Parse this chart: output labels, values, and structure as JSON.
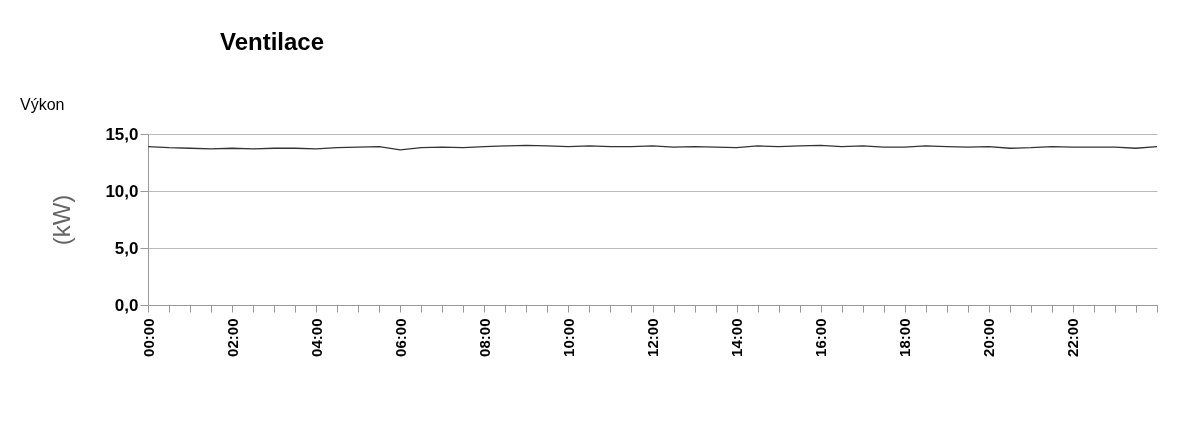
{
  "chart_data": {
    "type": "line",
    "title": "Ventilace",
    "ylabel": "(kW)",
    "annotations": [
      "Výkon"
    ],
    "x": [
      0,
      0.5,
      1,
      1.5,
      2,
      2.5,
      3,
      3.5,
      4,
      4.5,
      5,
      5.5,
      6,
      6.5,
      7,
      7.5,
      8,
      8.5,
      9,
      9.5,
      10,
      10.5,
      11,
      11.5,
      12,
      12.5,
      13,
      13.5,
      14,
      14.5,
      15,
      15.5,
      16,
      16.5,
      17,
      17.5,
      18,
      18.5,
      19,
      19.5,
      20,
      20.5,
      21,
      21.5,
      22,
      22.5,
      23,
      23.5,
      24
    ],
    "series": [
      {
        "color": "#333333",
        "values": [
          13.9,
          13.8,
          13.75,
          13.7,
          13.75,
          13.7,
          13.75,
          13.75,
          13.7,
          13.8,
          13.85,
          13.9,
          13.6,
          13.8,
          13.85,
          13.8,
          13.9,
          13.95,
          14.0,
          13.95,
          13.9,
          13.95,
          13.9,
          13.9,
          13.95,
          13.85,
          13.9,
          13.85,
          13.8,
          13.95,
          13.9,
          13.95,
          14.0,
          13.9,
          13.95,
          13.85,
          13.85,
          13.95,
          13.9,
          13.85,
          13.9,
          13.75,
          13.8,
          13.9,
          13.85,
          13.85,
          13.85,
          13.75,
          13.9
        ]
      }
    ],
    "xlim": [
      0,
      24
    ],
    "xticks": [
      {
        "value": 0,
        "label": "00:00"
      },
      {
        "value": 0.5,
        "label": null
      },
      {
        "value": 1,
        "label": null
      },
      {
        "value": 1.5,
        "label": null
      },
      {
        "value": 2,
        "label": "02:00"
      },
      {
        "value": 2.5,
        "label": null
      },
      {
        "value": 3,
        "label": null
      },
      {
        "value": 3.5,
        "label": null
      },
      {
        "value": 4,
        "label": "04:00"
      },
      {
        "value": 4.5,
        "label": null
      },
      {
        "value": 5,
        "label": null
      },
      {
        "value": 5.5,
        "label": null
      },
      {
        "value": 6,
        "label": "06:00"
      },
      {
        "value": 6.5,
        "label": null
      },
      {
        "value": 7,
        "label": null
      },
      {
        "value": 7.5,
        "label": null
      },
      {
        "value": 8,
        "label": "08:00"
      },
      {
        "value": 8.5,
        "label": null
      },
      {
        "value": 9,
        "label": null
      },
      {
        "value": 9.5,
        "label": null
      },
      {
        "value": 10,
        "label": "10:00"
      },
      {
        "value": 10.5,
        "label": null
      },
      {
        "value": 11,
        "label": null
      },
      {
        "value": 11.5,
        "label": null
      },
      {
        "value": 12,
        "label": "12:00"
      },
      {
        "value": 12.5,
        "label": null
      },
      {
        "value": 13,
        "label": null
      },
      {
        "value": 13.5,
        "label": null
      },
      {
        "value": 14,
        "label": "14:00"
      },
      {
        "value": 14.5,
        "label": null
      },
      {
        "value": 15,
        "label": null
      },
      {
        "value": 15.5,
        "label": null
      },
      {
        "value": 16,
        "label": "16:00"
      },
      {
        "value": 16.5,
        "label": null
      },
      {
        "value": 17,
        "label": null
      },
      {
        "value": 17.5,
        "label": null
      },
      {
        "value": 18,
        "label": "18:00"
      },
      {
        "value": 18.5,
        "label": null
      },
      {
        "value": 19,
        "label": null
      },
      {
        "value": 19.5,
        "label": null
      },
      {
        "value": 20,
        "label": "20:00"
      },
      {
        "value": 20.5,
        "label": null
      },
      {
        "value": 21,
        "label": null
      },
      {
        "value": 21.5,
        "label": null
      },
      {
        "value": 22,
        "label": "22:00"
      },
      {
        "value": 22.5,
        "label": null
      },
      {
        "value": 23,
        "label": null
      },
      {
        "value": 23.5,
        "label": null
      },
      {
        "value": 24,
        "label": null
      }
    ],
    "ylim": [
      0,
      15
    ],
    "yticks": [
      {
        "value": 0,
        "label": "0,0"
      },
      {
        "value": 5,
        "label": "5,0"
      },
      {
        "value": 10,
        "label": "10,0"
      },
      {
        "value": 15,
        "label": "15,0"
      }
    ],
    "grid": "y"
  }
}
